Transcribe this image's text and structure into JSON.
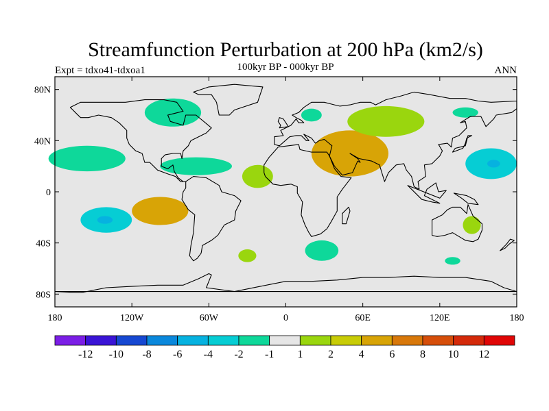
{
  "title": "Streamfunction Perturbation at 200 hPa (km2/s)",
  "subtitle": "100kyr BP - 000kyr BP",
  "left_label": "Expt = tdxo41-tdxoa1",
  "right_label": "ANN",
  "chart_data": {
    "type": "contour-map",
    "title": "Streamfunction Perturbation at 200 hPa (km2/s)",
    "subtitle": "100kyr BP - 000kyr BP",
    "units": "km2/s",
    "projection": "cylindrical-equidistant",
    "lon_range": [
      -180,
      180
    ],
    "lat_range": [
      -90,
      90
    ],
    "x_ticks": [
      {
        "value": -180,
        "label": "180"
      },
      {
        "value": -120,
        "label": "120W"
      },
      {
        "value": -60,
        "label": "60W"
      },
      {
        "value": 0,
        "label": "0"
      },
      {
        "value": 60,
        "label": "60E"
      },
      {
        "value": 120,
        "label": "120E"
      },
      {
        "value": 180,
        "label": "180"
      }
    ],
    "y_ticks": [
      {
        "value": 80,
        "label": "80N"
      },
      {
        "value": 40,
        "label": "40N"
      },
      {
        "value": 0,
        "label": "0"
      },
      {
        "value": -40,
        "label": "40S"
      },
      {
        "value": -80,
        "label": "80S"
      }
    ],
    "colorbar": {
      "labels": [
        "-12",
        "-10",
        "-8",
        "-6",
        "-4",
        "-2",
        "-1",
        "1",
        "2",
        "4",
        "6",
        "8",
        "10",
        "12"
      ],
      "colors": [
        "#7b1ee6",
        "#3a14d6",
        "#1648d2",
        "#0a88dc",
        "#06b2e0",
        "#06cdd4",
        "#0ed89a",
        "#e6e6e6",
        "#9ad60e",
        "#c8cc06",
        "#d8a406",
        "#d8780a",
        "#d64e0a",
        "#d42a0a",
        "#e00606"
      ]
    },
    "regions": [
      {
        "sign": "negative",
        "level": "-1",
        "center_lon": -88,
        "center_lat": 62,
        "desc": "Canada / Hudson Bay"
      },
      {
        "sign": "negative",
        "level": "-1",
        "center_lon": -155,
        "center_lat": 26,
        "desc": "North Pacific east"
      },
      {
        "sign": "negative",
        "level": "-1",
        "center_lon": -70,
        "center_lat": 20,
        "desc": "Caribbean / Atlantic"
      },
      {
        "sign": "negative",
        "level": "-2",
        "center_lon": -140,
        "center_lat": -22,
        "desc": "South Pacific"
      },
      {
        "sign": "negative",
        "level": "-1",
        "center_lon": 28,
        "center_lat": -46,
        "desc": "South Atlantic / Indian"
      },
      {
        "sign": "negative",
        "level": "-1",
        "center_lon": 130,
        "center_lat": -54,
        "desc": "Southern Ocean"
      },
      {
        "sign": "negative",
        "level": "-1",
        "center_lon": 20,
        "center_lat": 60,
        "desc": "Scandinavia"
      },
      {
        "sign": "negative",
        "level": "-1",
        "center_lon": 140,
        "center_lat": 62,
        "desc": "Siberia"
      },
      {
        "sign": "negative",
        "level": "-2",
        "center_lon": 160,
        "center_lat": 22,
        "desc": "West Pacific"
      },
      {
        "sign": "positive",
        "level": "4",
        "center_lon": -98,
        "center_lat": -15,
        "desc": "East Pacific"
      },
      {
        "sign": "positive",
        "level": "1",
        "center_lon": -30,
        "center_lat": -50,
        "desc": "South Atlantic"
      },
      {
        "sign": "positive",
        "level": "1",
        "center_lon": -22,
        "center_lat": 12,
        "desc": "Tropical Atlantic"
      },
      {
        "sign": "positive",
        "level": "4",
        "center_lon": 50,
        "center_lat": 30,
        "desc": "Middle East / Asia"
      },
      {
        "sign": "positive",
        "level": "1",
        "center_lon": 145,
        "center_lat": -26,
        "desc": "Australia"
      }
    ]
  }
}
